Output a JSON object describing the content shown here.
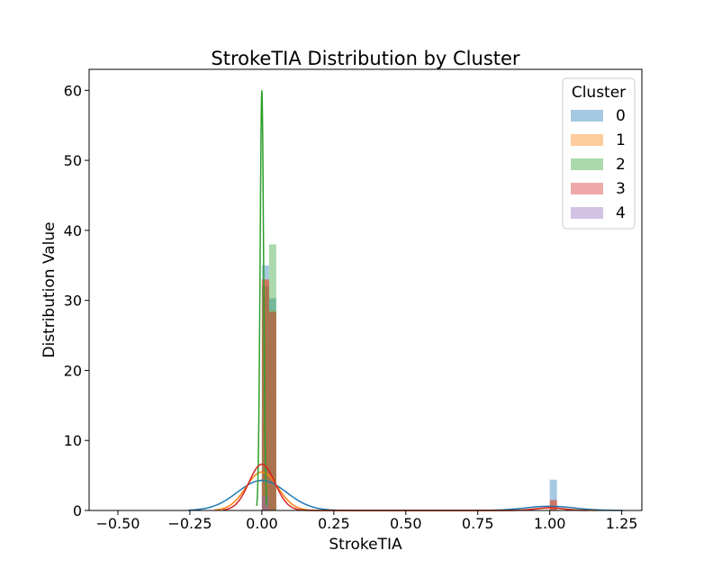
{
  "chart_data": {
    "type": "histogram",
    "title": "StrokeTIA Distribution by Cluster",
    "xlabel": "StrokeTIA",
    "ylabel": "Distribution Value",
    "xlim": [
      -0.6,
      1.32
    ],
    "ylim": [
      0,
      63
    ],
    "x_ticks": [
      -0.5,
      -0.25,
      0.0,
      0.25,
      0.5,
      0.75,
      1.0,
      1.25
    ],
    "x_tick_labels": [
      "−0.50",
      "−0.25",
      "0.00",
      "0.25",
      "0.50",
      "0.75",
      "1.00",
      "1.25"
    ],
    "y_ticks": [
      0,
      10,
      20,
      30,
      40,
      50,
      60
    ],
    "y_tick_labels": [
      "0",
      "10",
      "20",
      "30",
      "40",
      "50",
      "60"
    ],
    "grid": false,
    "legend": {
      "title": "Cluster",
      "placement": "top-right"
    },
    "bin_width": 0.025,
    "series": [
      {
        "name": "0",
        "color": "#1f77b4",
        "bars": [
          [
            0.0,
            35.0
          ],
          [
            0.025,
            30.3
          ],
          [
            1.0,
            4.4
          ]
        ],
        "kde_gaussians": [
          [
            0.0,
            4.3,
            0.085
          ],
          [
            1.0,
            0.6,
            0.085
          ]
        ]
      },
      {
        "name": "1",
        "color": "#ff7f0e",
        "bars": [
          [
            0.0,
            33.0
          ],
          [
            0.025,
            28.5
          ],
          [
            1.0,
            1.4
          ]
        ],
        "kde_gaussians": [
          [
            0.0,
            5.5,
            0.055
          ],
          [
            1.0,
            0.35,
            0.055
          ]
        ]
      },
      {
        "name": "2",
        "color": "#2ca02c",
        "bars": [
          [
            0.0,
            32.0
          ],
          [
            0.025,
            38.0
          ]
        ],
        "kde_gaussians": [
          [
            0.0,
            60.0,
            0.006
          ]
        ]
      },
      {
        "name": "3",
        "color": "#d62728",
        "bars": [
          [
            0.0,
            33.0
          ],
          [
            0.025,
            28.3
          ],
          [
            1.0,
            1.5
          ]
        ],
        "kde_gaussians": [
          [
            0.0,
            6.6,
            0.045
          ],
          [
            1.0,
            0.4,
            0.045
          ]
        ]
      },
      {
        "name": "4",
        "color": "#9467bd",
        "bars": [
          [
            0.0,
            2.0
          ]
        ],
        "kde_gaussians": []
      }
    ]
  }
}
